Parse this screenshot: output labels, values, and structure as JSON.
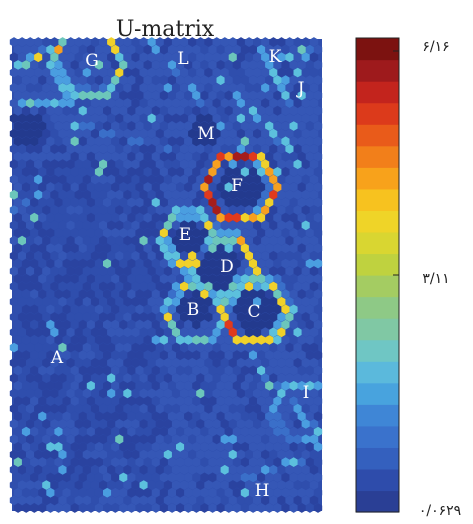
{
  "chart_data": {
    "type": "heatmap",
    "title": "U-matrix",
    "colorbar": {
      "max_label": "۶/۱۶",
      "mid_label": "۳/۱۱",
      "min_label": "۰/۰۶۲۹",
      "max": 6.16,
      "mid": 3.11,
      "min": 0.0629,
      "colors": [
        "#2a3f95",
        "#2e4cab",
        "#3460be",
        "#3a72cc",
        "#3f86d6",
        "#48a3de",
        "#5bb9dc",
        "#6fc6c4",
        "#80c8a4",
        "#8ec986",
        "#a4cc62",
        "#bfd23f",
        "#d9d631",
        "#efd428",
        "#f7c21f",
        "#f8a21b",
        "#f27f1a",
        "#e95b1a",
        "#dc3a1b",
        "#c3241d",
        "#9e1a1c",
        "#7c1210"
      ]
    },
    "regions": [
      {
        "label": "A"
      },
      {
        "label": "B"
      },
      {
        "label": "C"
      },
      {
        "label": "D"
      },
      {
        "label": "E"
      },
      {
        "label": "F"
      },
      {
        "label": "G"
      },
      {
        "label": "H"
      },
      {
        "label": "I"
      },
      {
        "label": "J"
      },
      {
        "label": "K"
      },
      {
        "label": "L"
      },
      {
        "label": "M"
      }
    ]
  }
}
